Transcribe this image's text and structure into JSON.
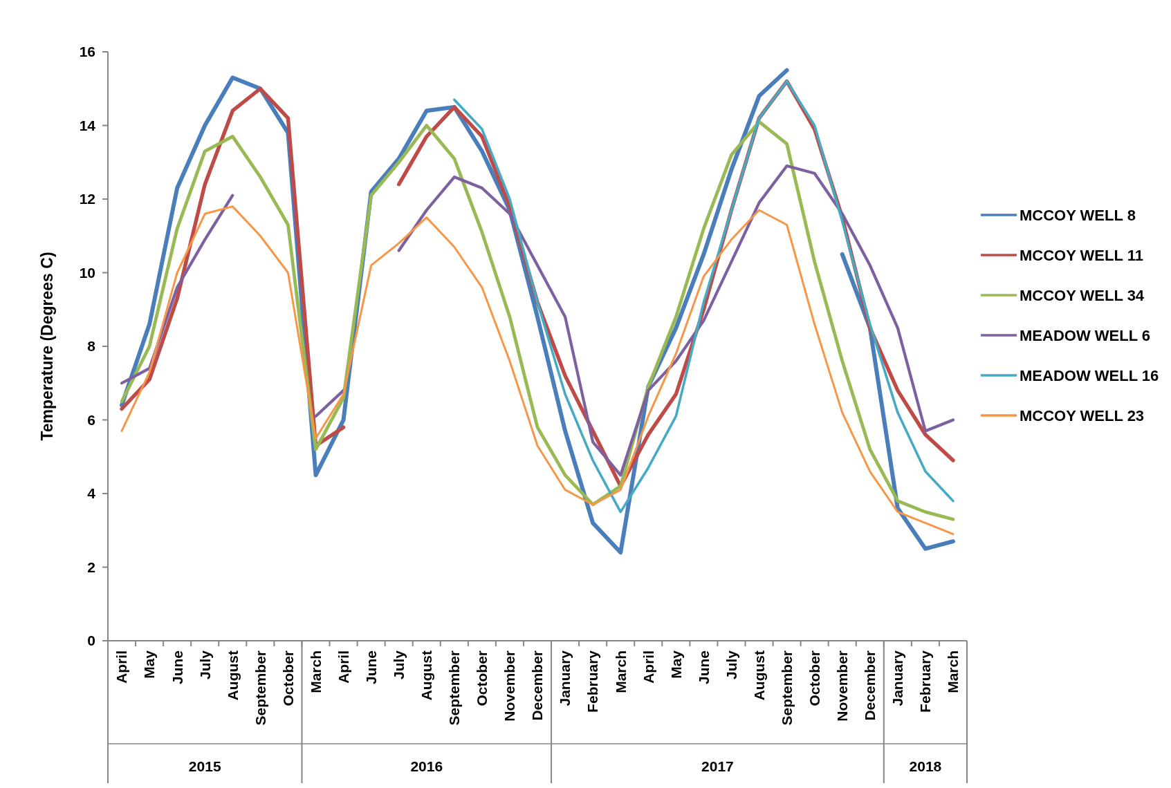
{
  "chart_data": {
    "type": "line",
    "ylabel": "Temperature (Degrees C)",
    "categories": [
      "April",
      "May",
      "June",
      "July",
      "August",
      "September",
      "October",
      "March",
      "April",
      "June",
      "July",
      "August",
      "September",
      "October",
      "November",
      "December",
      "January",
      "February",
      "March",
      "April",
      "May",
      "June",
      "July",
      "August",
      "September",
      "October",
      "November",
      "December",
      "January",
      "February",
      "March"
    ],
    "annotations": [
      "2015",
      "2016",
      "2017",
      "2018"
    ],
    "series": [
      {
        "name": "MCCOY WELL 8",
        "color": "#4a7ebb",
        "values": [
          6.4,
          8.6,
          12.3,
          14.0,
          15.3,
          15.0,
          13.8,
          4.5,
          6.0,
          12.2,
          13.1,
          14.4,
          14.5,
          13.3,
          11.7,
          8.8,
          5.7,
          3.2,
          2.4,
          6.9,
          8.5,
          10.5,
          12.8,
          14.8,
          15.5,
          null,
          10.5,
          8.5,
          3.6,
          2.5,
          2.7
        ]
      },
      {
        "name": "MCCOY WELL 11",
        "color": "#be4b48",
        "values": [
          6.3,
          7.1,
          9.3,
          12.4,
          14.4,
          15.0,
          14.2,
          5.3,
          5.8,
          null,
          12.4,
          13.7,
          14.5,
          13.7,
          11.8,
          9.2,
          7.2,
          5.7,
          4.2,
          5.6,
          6.7,
          9.0,
          11.7,
          14.2,
          15.2,
          13.9,
          11.5,
          8.5,
          6.8,
          5.6,
          4.9
        ]
      },
      {
        "name": "MCCOY WELL 34",
        "color": "#98b954",
        "values": [
          6.5,
          8.0,
          11.2,
          13.3,
          13.7,
          12.6,
          11.3,
          5.2,
          6.6,
          12.1,
          13.0,
          14.0,
          13.1,
          11.1,
          8.8,
          5.8,
          4.5,
          3.7,
          4.2,
          6.9,
          8.8,
          11.2,
          13.2,
          14.1,
          13.5,
          10.3,
          7.6,
          5.2,
          3.8,
          3.5,
          3.3
        ]
      },
      {
        "name": "MEADOW WELL 6",
        "color": "#7d60a0",
        "values": [
          7.0,
          7.4,
          9.6,
          10.9,
          12.1,
          null,
          null,
          6.1,
          6.8,
          null,
          10.6,
          11.7,
          12.6,
          12.3,
          11.6,
          10.2,
          8.8,
          5.4,
          4.5,
          6.8,
          7.6,
          8.7,
          10.3,
          11.9,
          12.9,
          12.7,
          11.6,
          10.2,
          8.5,
          5.7,
          6.0
        ]
      },
      {
        "name": "MEADOW WELL 16",
        "color": "#46aac5",
        "values": [
          null,
          null,
          null,
          null,
          null,
          null,
          null,
          null,
          null,
          null,
          null,
          null,
          14.7,
          13.9,
          12.0,
          9.2,
          6.7,
          4.9,
          3.5,
          4.7,
          6.1,
          9.2,
          11.7,
          14.2,
          15.2,
          14.0,
          11.4,
          8.6,
          6.2,
          4.6,
          3.8
        ]
      },
      {
        "name": "MCCOY WELL 23",
        "color": "#f79646",
        "values": [
          5.7,
          7.3,
          10.0,
          11.6,
          11.8,
          11.0,
          10.0,
          5.5,
          6.7,
          10.2,
          10.8,
          11.5,
          10.7,
          9.6,
          7.6,
          5.3,
          4.1,
          3.7,
          4.1,
          6.1,
          7.8,
          9.9,
          10.9,
          11.7,
          11.3,
          8.6,
          6.2,
          4.6,
          3.5,
          3.2,
          2.9
        ]
      }
    ],
    "ylim": [
      0,
      16
    ],
    "yticks": [
      0,
      2,
      4,
      6,
      8,
      10,
      12,
      14,
      16
    ],
    "grid": false,
    "legend": "right",
    "line_style": "solid",
    "marker": "none"
  }
}
